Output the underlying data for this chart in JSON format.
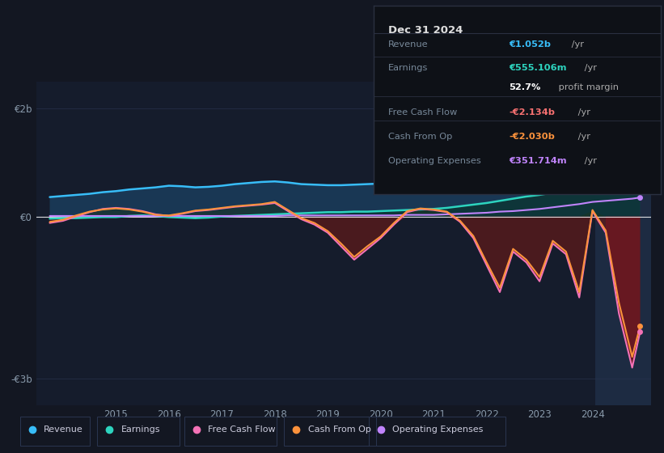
{
  "background_color": "#131722",
  "plot_bg_color": "#151c2c",
  "highlight_bg_color": "#1a2540",
  "title_box": {
    "date": "Dec 31 2024",
    "rows": [
      {
        "label": "Revenue",
        "value": "€1.052b",
        "unit": " /yr",
        "color": "#38bdf8"
      },
      {
        "label": "Earnings",
        "value": "€555.106m",
        "unit": " /yr",
        "color": "#2dd4bf"
      },
      {
        "label": "",
        "value": "52.7%",
        "unit": " profit margin",
        "color": "#ffffff"
      },
      {
        "label": "Free Cash Flow",
        "value": "-€2.134b",
        "unit": " /yr",
        "color": "#f87171"
      },
      {
        "label": "Cash From Op",
        "value": "-€2.030b",
        "unit": " /yr",
        "color": "#fb923c"
      },
      {
        "label": "Operating Expenses",
        "value": "€351.714m",
        "unit": " /yr",
        "color": "#c084fc"
      }
    ]
  },
  "legend": [
    {
      "label": "Revenue",
      "color": "#38bdf8"
    },
    {
      "label": "Earnings",
      "color": "#2dd4bf"
    },
    {
      "label": "Free Cash Flow",
      "color": "#f472b6"
    },
    {
      "label": "Cash From Op",
      "color": "#fb923c"
    },
    {
      "label": "Operating Expenses",
      "color": "#c084fc"
    }
  ],
  "years": [
    2013.75,
    2014.0,
    2014.25,
    2014.5,
    2014.75,
    2015.0,
    2015.25,
    2015.5,
    2015.75,
    2016.0,
    2016.25,
    2016.5,
    2016.75,
    2017.0,
    2017.25,
    2017.5,
    2017.75,
    2018.0,
    2018.25,
    2018.5,
    2018.75,
    2019.0,
    2019.25,
    2019.5,
    2019.75,
    2020.0,
    2020.25,
    2020.5,
    2020.75,
    2021.0,
    2021.25,
    2021.5,
    2021.75,
    2022.0,
    2022.25,
    2022.5,
    2022.75,
    2023.0,
    2023.25,
    2023.5,
    2023.75,
    2024.0,
    2024.25,
    2024.5,
    2024.75,
    2024.9
  ],
  "revenue": [
    0.36,
    0.38,
    0.4,
    0.42,
    0.45,
    0.47,
    0.5,
    0.52,
    0.54,
    0.57,
    0.56,
    0.54,
    0.55,
    0.57,
    0.6,
    0.62,
    0.64,
    0.65,
    0.63,
    0.6,
    0.59,
    0.58,
    0.58,
    0.59,
    0.6,
    0.61,
    0.62,
    0.63,
    0.63,
    0.63,
    0.64,
    0.65,
    0.66,
    0.67,
    0.69,
    0.71,
    0.73,
    0.75,
    0.78,
    0.82,
    0.88,
    0.93,
    0.97,
    1.0,
    1.03,
    1.052
  ],
  "earnings": [
    -0.04,
    -0.03,
    -0.03,
    -0.02,
    -0.01,
    -0.01,
    0.01,
    0.02,
    0.01,
    -0.01,
    -0.02,
    -0.03,
    -0.02,
    0.0,
    0.01,
    0.02,
    0.03,
    0.04,
    0.05,
    0.06,
    0.07,
    0.08,
    0.08,
    0.09,
    0.09,
    0.1,
    0.11,
    0.12,
    0.13,
    0.14,
    0.16,
    0.19,
    0.22,
    0.25,
    0.29,
    0.33,
    0.37,
    0.4,
    0.44,
    0.47,
    0.5,
    0.52,
    0.53,
    0.54,
    0.55,
    0.555
  ],
  "free_cash_flow": [
    -0.12,
    -0.08,
    0.0,
    0.08,
    0.14,
    0.16,
    0.14,
    0.1,
    0.04,
    0.01,
    0.05,
    0.1,
    0.12,
    0.15,
    0.18,
    0.2,
    0.22,
    0.25,
    0.1,
    -0.05,
    -0.15,
    -0.3,
    -0.55,
    -0.8,
    -0.6,
    -0.4,
    -0.15,
    0.08,
    0.14,
    0.12,
    0.08,
    -0.1,
    -0.4,
    -0.9,
    -1.4,
    -0.65,
    -0.85,
    -1.2,
    -0.5,
    -0.7,
    -1.5,
    0.1,
    -0.3,
    -1.8,
    -2.8,
    -2.134
  ],
  "cash_from_op": [
    -0.1,
    -0.06,
    0.02,
    0.09,
    0.13,
    0.15,
    0.13,
    0.09,
    0.03,
    0.02,
    0.06,
    0.11,
    0.13,
    0.16,
    0.19,
    0.21,
    0.23,
    0.27,
    0.12,
    -0.03,
    -0.12,
    -0.27,
    -0.5,
    -0.75,
    -0.55,
    -0.37,
    -0.12,
    0.1,
    0.15,
    0.13,
    0.09,
    -0.08,
    -0.36,
    -0.85,
    -1.32,
    -0.6,
    -0.8,
    -1.12,
    -0.45,
    -0.65,
    -1.4,
    0.12,
    -0.26,
    -1.6,
    -2.6,
    -2.03
  ],
  "op_expenses": [
    0.01,
    0.01,
    0.01,
    0.01,
    0.01,
    0.01,
    0.01,
    0.01,
    0.01,
    0.01,
    0.01,
    0.01,
    0.01,
    0.01,
    0.01,
    0.01,
    0.01,
    0.01,
    0.02,
    0.02,
    0.02,
    0.02,
    0.02,
    0.02,
    0.02,
    0.02,
    0.02,
    0.03,
    0.03,
    0.03,
    0.04,
    0.05,
    0.06,
    0.07,
    0.09,
    0.1,
    0.12,
    0.14,
    0.17,
    0.2,
    0.23,
    0.27,
    0.29,
    0.31,
    0.33,
    0.3517
  ],
  "xticks": [
    2015,
    2016,
    2017,
    2018,
    2019,
    2020,
    2021,
    2022,
    2023,
    2024
  ],
  "yticks_vals": [
    -3.0,
    0.0,
    2.0
  ],
  "ytick_labels": [
    "-€3b",
    "€0",
    "€2b"
  ],
  "ylim": [
    -3.5,
    2.5
  ],
  "xlim_start": 2013.5,
  "xlim_end": 2025.1,
  "highlight_x": 2024.05,
  "revenue_color": "#38bdf8",
  "earnings_color": "#2dd4bf",
  "fcf_color": "#f472b6",
  "cop_color": "#fb923c",
  "opex_color": "#c084fc"
}
